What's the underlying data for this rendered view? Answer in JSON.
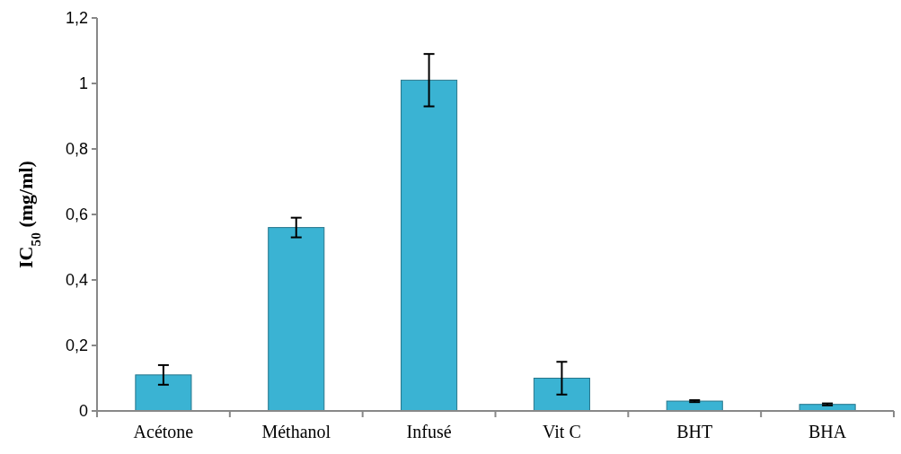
{
  "chart_data": {
    "type": "bar",
    "ylabel": "IC$_{50}$ (mg/ml)",
    "categories": [
      "Acétone",
      "Méthanol",
      "Infusé",
      "Vit C",
      "BHT",
      "BHA"
    ],
    "values": [
      0.11,
      0.56,
      1.01,
      0.1,
      0.03,
      0.02
    ],
    "errors": [
      0.03,
      0.03,
      0.08,
      0.05,
      0.003,
      0.003
    ],
    "color": "#3ab3d3",
    "ylim": [
      0,
      1.2
    ],
    "yticks": [
      0,
      {
        "value": 0.2,
        "label": "0,2"
      },
      {
        "value": 0.4,
        "label": "0,4"
      },
      {
        "value": 0.6,
        "label": "0,6"
      },
      {
        "value": 0.8,
        "label": "0,8"
      },
      1,
      {
        "value": 1.2,
        "label": "1,2"
      }
    ],
    "grid": false
  }
}
